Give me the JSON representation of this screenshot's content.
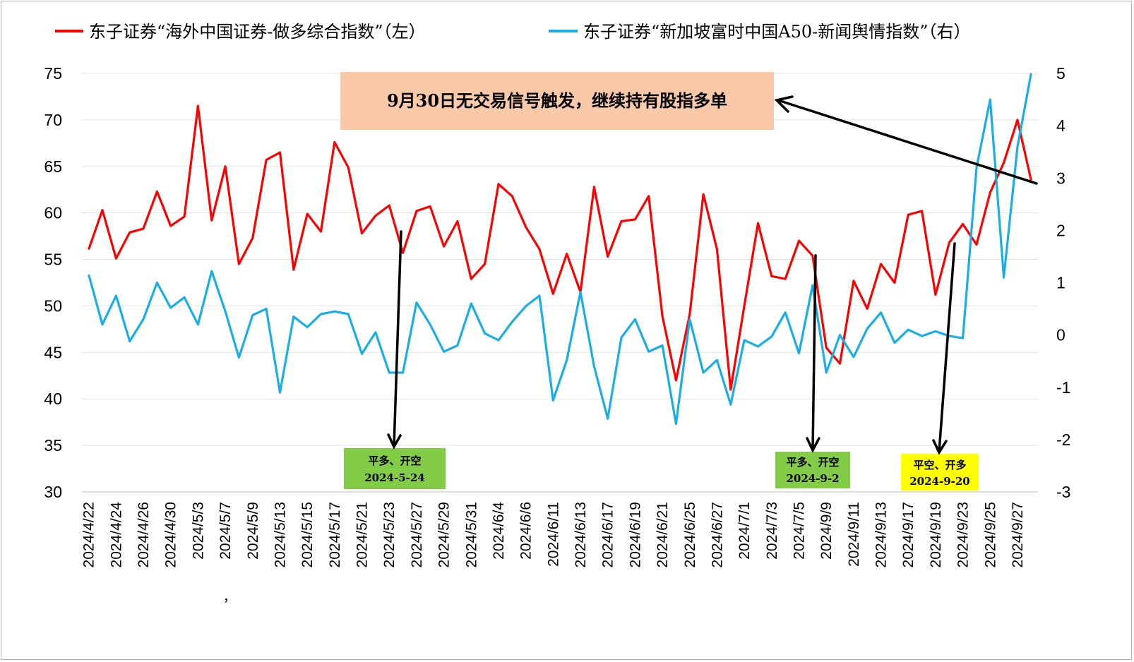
{
  "chart_data": {
    "type": "line",
    "title": "",
    "xlabel": "",
    "ylabel": "",
    "ylim_left": [
      30,
      75
    ],
    "yticks_left": [
      30,
      35,
      40,
      45,
      50,
      55,
      60,
      65,
      70,
      75
    ],
    "ylim_right": [
      -3,
      5
    ],
    "yticks_right": [
      -3,
      -2,
      -1,
      0,
      1,
      2,
      3,
      4,
      5
    ],
    "grid": true,
    "legend_position": "top",
    "x_tick_labels": [
      "2024/4/22",
      "2024/4/24",
      "2024/4/26",
      "2024/4/30",
      "2024/5/3",
      "2024/5/7",
      "2024/5/9",
      "2024/5/13",
      "2024/5/15",
      "2024/5/17",
      "2024/5/21",
      "2024/5/23",
      "2024/5/27",
      "2024/5/29",
      "2024/5/31",
      "2024/6/4",
      "2024/6/6",
      "2024/6/11",
      "2024/6/13",
      "2024/6/17",
      "2024/6/19",
      "2024/6/21",
      "2024/6/25",
      "2024/6/27",
      "2024/7/1",
      "2024/7/3",
      "2024/7/5",
      "2024/9/9",
      "2024/9/11",
      "2024/9/13",
      "2024/9/17",
      "2024/9/19",
      "2024/9/23",
      "2024/9/25",
      "2024/9/27"
    ],
    "series": [
      {
        "name": "东子证券“海外中国证券-做多综合指数”（左）",
        "axis": "left",
        "color": "#ff0000",
        "values": [
          56.1,
          60.3,
          55.1,
          57.9,
          58.3,
          62.3,
          58.6,
          59.6,
          71.5,
          59.2,
          65.0,
          54.5,
          57.3,
          65.7,
          66.5,
          53.9,
          59.9,
          58.0,
          67.6,
          64.9,
          57.8,
          59.7,
          60.8,
          55.7,
          60.2,
          60.7,
          56.4,
          59.1,
          52.9,
          54.5,
          63.1,
          61.8,
          58.5,
          56.1,
          51.3,
          55.6,
          51.5,
          62.8,
          55.3,
          59.1,
          59.3,
          61.8,
          48.9,
          42.0,
          49.1,
          62.0,
          56.1,
          41.0,
          50.0,
          58.9,
          53.2,
          52.9,
          57.0,
          55.4,
          45.5,
          43.8,
          52.7,
          49.7,
          54.5,
          52.5,
          59.8,
          60.2,
          51.2,
          56.8,
          58.8,
          56.6,
          62.2,
          65.4,
          70.0,
          63.5
        ]
      },
      {
        "name": "东子证券“新加坡富时中国A50-新闻舆情指数”（右）",
        "axis": "right",
        "color": "#19aee6",
        "values": [
          1.15,
          0.2,
          0.75,
          -0.12,
          0.3,
          1.0,
          0.52,
          0.72,
          0.2,
          1.22,
          0.45,
          -0.43,
          0.38,
          0.5,
          -1.1,
          0.35,
          0.15,
          0.4,
          0.45,
          0.4,
          -0.36,
          0.05,
          -0.72,
          -0.72,
          0.62,
          0.2,
          -0.32,
          -0.2,
          0.6,
          0.03,
          -0.1,
          0.25,
          0.55,
          0.75,
          -1.25,
          -0.48,
          0.82,
          -0.6,
          -1.6,
          -0.05,
          0.3,
          -0.32,
          -0.2,
          -1.7,
          0.3,
          -0.72,
          -0.48,
          -1.33,
          -0.1,
          -0.22,
          -0.03,
          0.43,
          -0.35,
          0.95,
          -0.72,
          0.0,
          -0.42,
          0.12,
          0.43,
          -0.15,
          0.1,
          -0.02,
          0.07,
          -0.02,
          -0.06,
          3.2,
          4.5,
          1.1,
          3.6,
          5.0
        ]
      }
    ]
  },
  "callout": {
    "text": "9月30日无交易信号触发，继续持有股指多单",
    "bg_color": "#f9c9a8"
  },
  "signals": [
    {
      "line1": "平多、开空",
      "line2": "2024-5-24",
      "bg_color": "#82cc47"
    },
    {
      "line1": "平多、开空",
      "line2": "2024-9-2",
      "bg_color": "#82cc47"
    },
    {
      "line1": "平空、开多",
      "line2": "2024-9-20",
      "bg_color": "#ffff00"
    }
  ],
  "stray_mark": "，"
}
